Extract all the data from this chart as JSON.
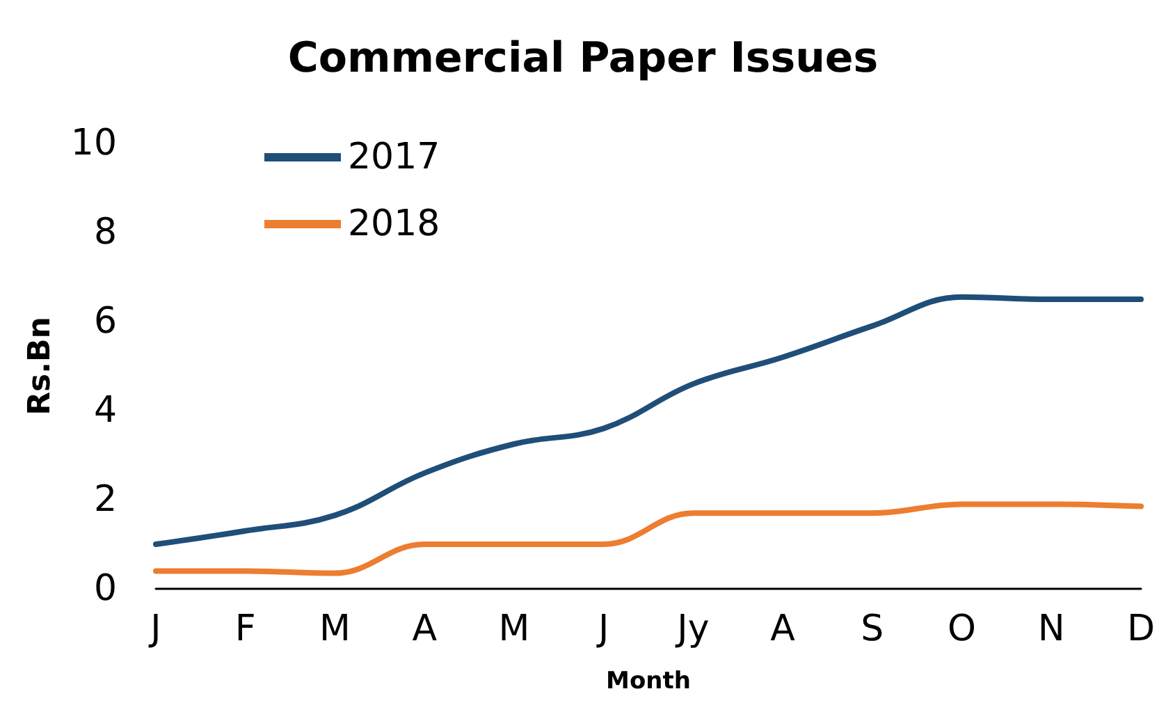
{
  "chart_data": {
    "type": "line",
    "title": "Commercial Paper Issues",
    "xlabel": "Month",
    "ylabel": "Rs.Bn",
    "categories": [
      "J",
      "F",
      "M",
      "A",
      "M",
      "J",
      "Jy",
      "A",
      "S",
      "O",
      "N",
      "D"
    ],
    "series": [
      {
        "name": "2017",
        "color": "#1f4e79",
        "values": [
          1.0,
          1.3,
          1.65,
          2.6,
          3.25,
          3.6,
          4.6,
          5.2,
          5.9,
          6.55,
          6.5,
          6.5
        ]
      },
      {
        "name": "2018",
        "color": "#ed7d31",
        "values": [
          0.4,
          0.4,
          0.35,
          1.0,
          1.0,
          1.0,
          1.7,
          1.7,
          1.7,
          1.9,
          1.9,
          1.85
        ]
      }
    ],
    "ylim": [
      0,
      10
    ],
    "yticks": [
      0,
      2,
      4,
      6,
      8,
      10
    ],
    "grid": false,
    "legend": "top left",
    "marker": "none",
    "line_style": "solid"
  }
}
